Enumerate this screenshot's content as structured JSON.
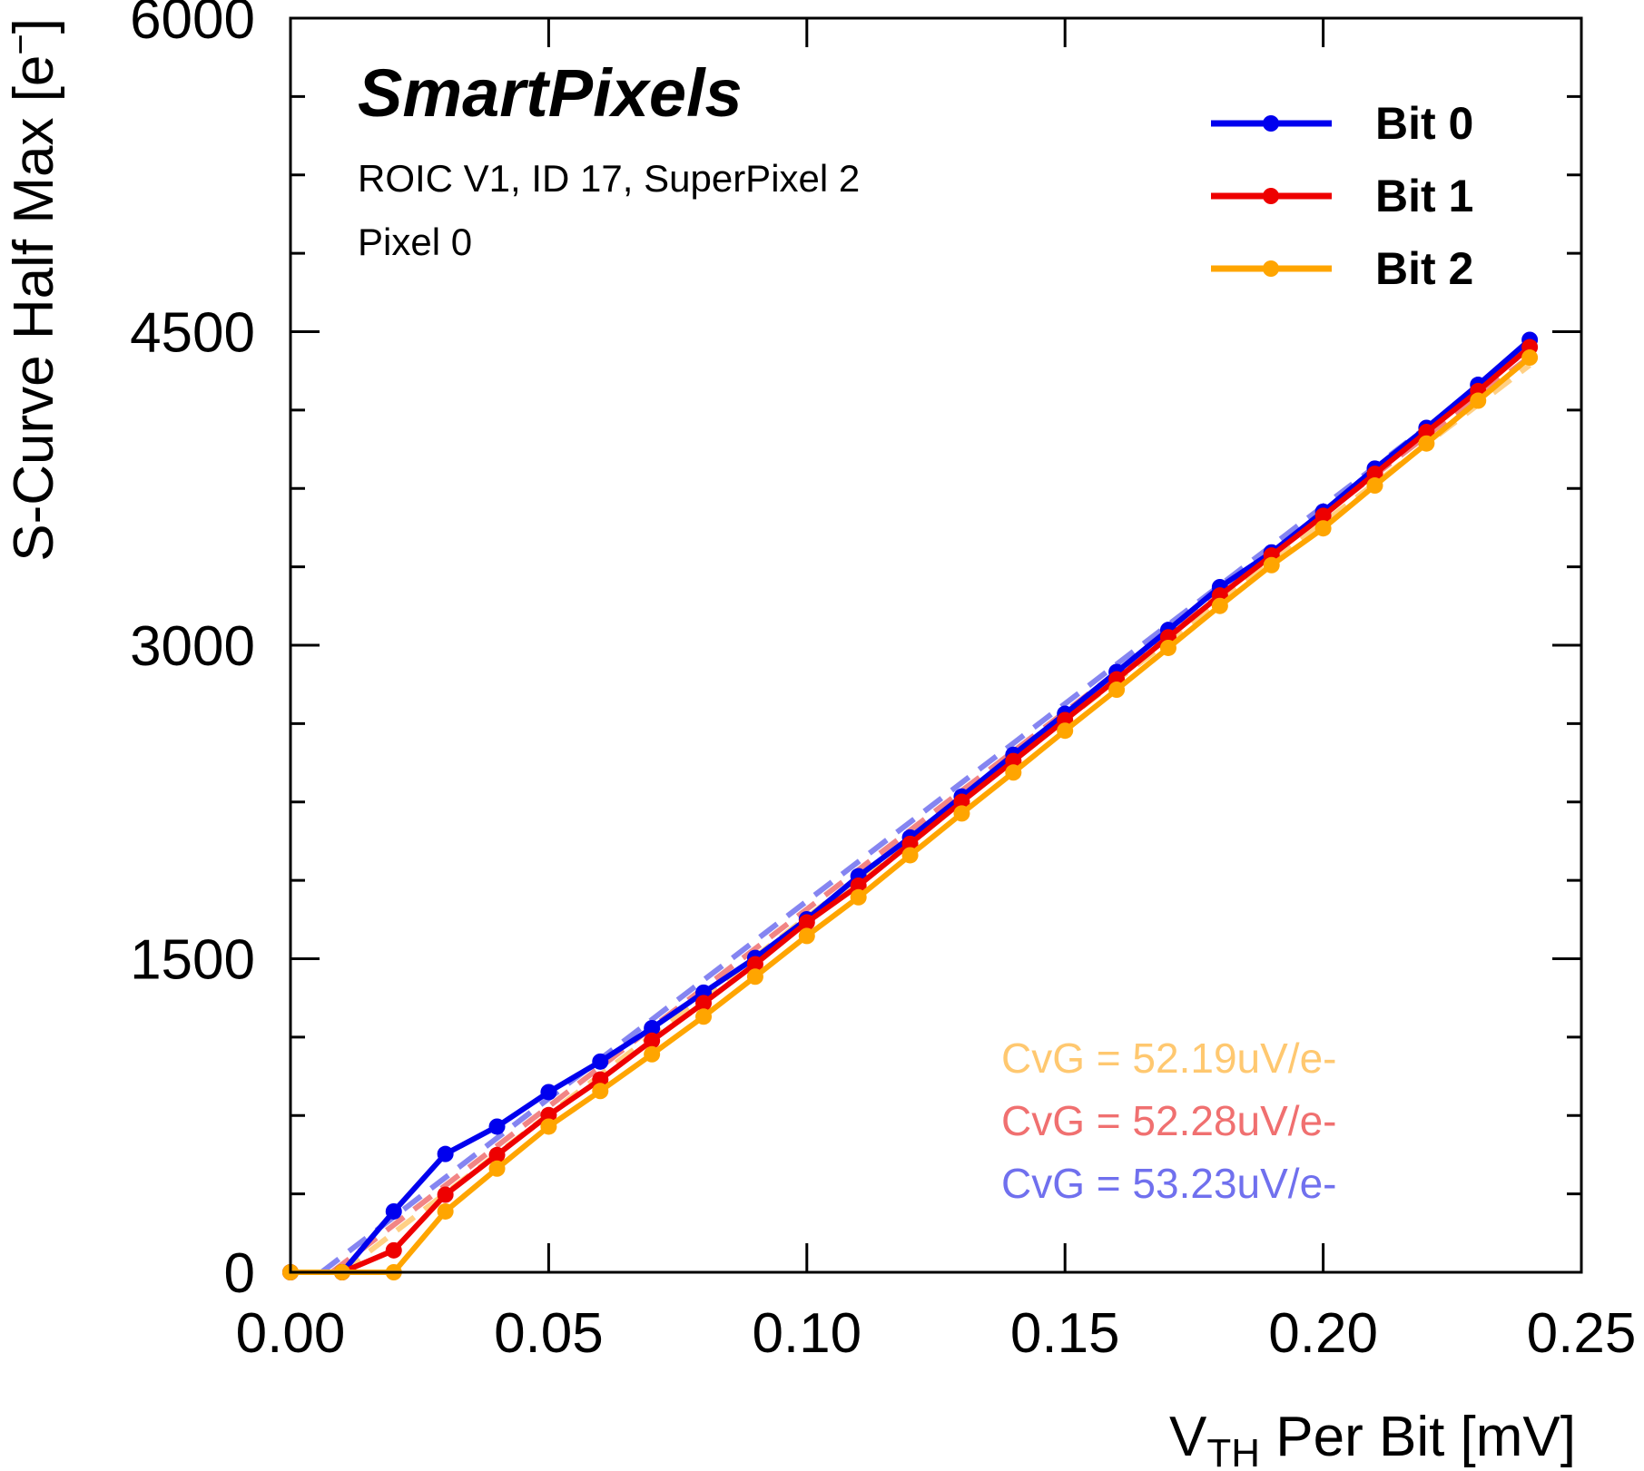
{
  "chart_data": {
    "type": "line",
    "title": "SmartPixels",
    "subtitle": [
      "ROIC V1, ID 17, SuperPixel 2",
      "Pixel 0"
    ],
    "xlabel": [
      "V",
      "TH",
      " Per Bit [mV]"
    ],
    "ylabel": [
      "S-Curve Half Max [e",
      "−",
      "]"
    ],
    "x": [
      0,
      0.01,
      0.02,
      0.03,
      0.04,
      0.05,
      0.06,
      0.07,
      0.08,
      0.09,
      0.1,
      0.11,
      0.12,
      0.13,
      0.14,
      0.15,
      0.16,
      0.17,
      0.18,
      0.19,
      0.2,
      0.21,
      0.22,
      0.23,
      0.24
    ],
    "series": [
      {
        "name": "Bit 0",
        "color": "#0000ee",
        "values": [
          0,
          0,
          291,
          566,
          697,
          862,
          1008,
          1168,
          1338,
          1504,
          1689,
          1895,
          2080,
          2276,
          2476,
          2672,
          2872,
          3073,
          3278,
          3444,
          3639,
          3845,
          4040,
          4246,
          4461
        ]
      },
      {
        "name": "Bit 1",
        "color": "#ee0000",
        "values": [
          0,
          0,
          105,
          371,
          561,
          752,
          922,
          1108,
          1288,
          1474,
          1674,
          1850,
          2050,
          2251,
          2446,
          2642,
          2837,
          3038,
          3238,
          3429,
          3619,
          3820,
          4020,
          4216,
          4426
        ]
      },
      {
        "name": "Bit 2",
        "color": "#ffa500",
        "values": [
          0,
          0,
          0,
          291,
          496,
          697,
          867,
          1043,
          1223,
          1414,
          1609,
          1794,
          1995,
          2195,
          2391,
          2591,
          2787,
          2987,
          3188,
          3383,
          3559,
          3764,
          3965,
          4170,
          4376
        ]
      }
    ],
    "fits": [
      {
        "label": "CvG = 52.19uV/e-",
        "color": "#ffc870",
        "x": [
          0.01,
          0.24
        ],
        "values": [
          0,
          4340
        ]
      },
      {
        "label": "CvG = 52.28uV/e-",
        "color": "#f07070",
        "x": [
          0.008,
          0.24
        ],
        "values": [
          0,
          4380
        ]
      },
      {
        "label": "CvG = 53.23uV/e-",
        "color": "#7070ee",
        "x": [
          0.006,
          0.24
        ],
        "values": [
          0,
          4420
        ]
      }
    ],
    "xlim": [
      0,
      0.25
    ],
    "xticks": [
      {
        "value": 0,
        "label": "0.00"
      },
      0.05,
      {
        "value": 0.1,
        "label": "0.10"
      },
      0.15,
      {
        "value": 0.2,
        "label": "0.20"
      },
      0.25
    ],
    "ylim": [
      0,
      6000
    ],
    "yticks": [
      0,
      1500,
      3000,
      4500,
      6000
    ],
    "yminorticks": [
      375,
      750,
      1125,
      1875,
      2250,
      2625,
      3375,
      3750,
      4125,
      4875,
      5250,
      5625
    ],
    "legend": "upper right"
  }
}
